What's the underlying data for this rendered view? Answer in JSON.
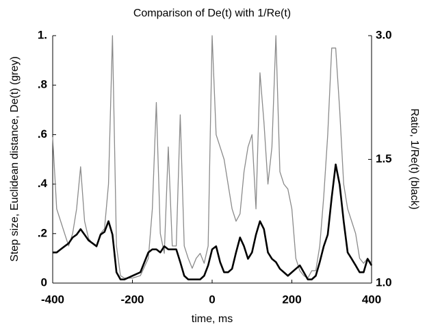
{
  "chart_data": {
    "type": "line",
    "title": "Comparison of De(t) with 1/Re(t)",
    "xlabel": "time, ms",
    "ylabel": "Step size, Euclidean distance, De(t) (grey)",
    "y2label": "Ratio, 1/Re(t) (black)",
    "xlim": [
      -400,
      400
    ],
    "xticks": [
      -400,
      -200,
      0,
      200,
      400
    ],
    "ylim": [
      0,
      1
    ],
    "yticks": [
      0,
      {
        "value": 0.2,
        "label": ".2"
      },
      {
        "value": 0.4,
        "label": ".4"
      },
      {
        "value": 0.6,
        "label": ".6"
      },
      {
        "value": 0.8,
        "label": ".8"
      },
      {
        "value": 1,
        "label": "1."
      }
    ],
    "y2lim": [
      1,
      3
    ],
    "y2scale": "reciprocal",
    "y2ticks": [
      {
        "value": 1,
        "label": "1.0"
      },
      {
        "value": 1.5,
        "label": "1.5"
      },
      {
        "value": 3,
        "label": "3.0"
      }
    ],
    "x": [
      -400,
      -390,
      -380,
      -370,
      -360,
      -350,
      -340,
      -330,
      -320,
      -310,
      -300,
      -290,
      -280,
      -270,
      -260,
      -250,
      -240,
      -230,
      -220,
      -200,
      -180,
      -160,
      -150,
      -140,
      -130,
      -120,
      -110,
      -100,
      -90,
      -80,
      -70,
      -60,
      -50,
      -40,
      -30,
      -20,
      -10,
      0,
      10,
      20,
      30,
      40,
      50,
      60,
      70,
      80,
      90,
      100,
      110,
      120,
      130,
      140,
      150,
      160,
      170,
      180,
      190,
      200,
      210,
      220,
      230,
      240,
      250,
      260,
      270,
      280,
      290,
      300,
      310,
      320,
      330,
      340,
      350,
      360,
      370,
      380,
      390,
      400
    ],
    "series": [
      {
        "color": "#8a8a8a",
        "values": [
          0.59,
          0.3,
          0.25,
          0.2,
          0.15,
          0.2,
          0.3,
          0.47,
          0.25,
          0.18,
          0.16,
          0.15,
          0.2,
          0.22,
          0.4,
          1.0,
          0.15,
          0.03,
          0.02,
          0.02,
          0.03,
          0.1,
          0.3,
          0.73,
          0.2,
          0.12,
          0.55,
          0.15,
          0.15,
          0.68,
          0.15,
          0.1,
          0.06,
          0.1,
          0.12,
          0.08,
          0.15,
          1.0,
          0.6,
          0.55,
          0.5,
          0.4,
          0.3,
          0.25,
          0.28,
          0.45,
          0.55,
          0.6,
          0.3,
          0.85,
          0.65,
          0.4,
          0.55,
          1.0,
          0.45,
          0.4,
          0.38,
          0.3,
          0.1,
          0.05,
          0.03,
          0.02,
          0.05,
          0.05,
          0.15,
          0.35,
          0.6,
          0.95,
          0.95,
          0.7,
          0.4,
          0.3,
          0.25,
          0.2,
          0.1,
          0.08,
          0.1,
          0.08
        ]
      },
      {
        "color": "#000000",
        "axis": "y2",
        "values": [
          1.09,
          1.09,
          1.1,
          1.11,
          1.12,
          1.14,
          1.15,
          1.17,
          1.15,
          1.13,
          1.12,
          1.11,
          1.15,
          1.16,
          1.2,
          1.15,
          1.03,
          1.01,
          1.01,
          1.02,
          1.03,
          1.09,
          1.1,
          1.1,
          1.09,
          1.11,
          1.1,
          1.1,
          1.1,
          1.06,
          1.02,
          1.01,
          1.01,
          1.01,
          1.01,
          1.02,
          1.05,
          1.1,
          1.11,
          1.06,
          1.03,
          1.03,
          1.04,
          1.09,
          1.14,
          1.11,
          1.07,
          1.09,
          1.15,
          1.2,
          1.17,
          1.09,
          1.07,
          1.06,
          1.04,
          1.03,
          1.02,
          1.03,
          1.04,
          1.05,
          1.03,
          1.01,
          1.01,
          1.02,
          1.06,
          1.11,
          1.15,
          1.3,
          1.47,
          1.36,
          1.2,
          1.09,
          1.07,
          1.05,
          1.03,
          1.03,
          1.07,
          1.05
        ]
      }
    ]
  }
}
